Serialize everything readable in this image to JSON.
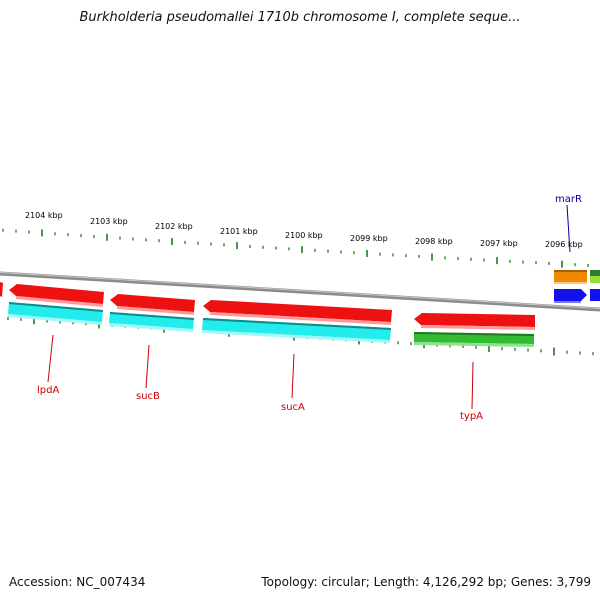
{
  "header": {
    "title": "Burkholderia pseudomallei 1710b chromosome I, complete seque..."
  },
  "footer": {
    "accession": "Accession: NC_007434",
    "summary": "Topology: circular; Length: 4,126,292 bp; Genes: 3,799"
  },
  "ruler": {
    "unit": "kbp",
    "ticks": [
      "2104 kbp",
      "2103 kbp",
      "2102 kbp",
      "2101 kbp",
      "2100 kbp",
      "2099 kbp",
      "2098 kbp",
      "2097 kbp",
      "2096 kbp"
    ]
  },
  "colors": {
    "backbone": "#8c8c8c",
    "tick": "#1f7a1f",
    "red_gene": "#ee1111",
    "cyan_gene": "#22ecec",
    "green_gene": "#33bb33",
    "orange_gene": "#ee8800",
    "blue_gene": "#1111ee",
    "lime_gene": "#99dd33",
    "red_label": "#cc0000",
    "blue_label": "#000099"
  },
  "genes": [
    {
      "name": "lpdA"
    },
    {
      "name": "sucB"
    },
    {
      "name": "sucA"
    },
    {
      "name": "typA"
    },
    {
      "name": "marR"
    }
  ]
}
